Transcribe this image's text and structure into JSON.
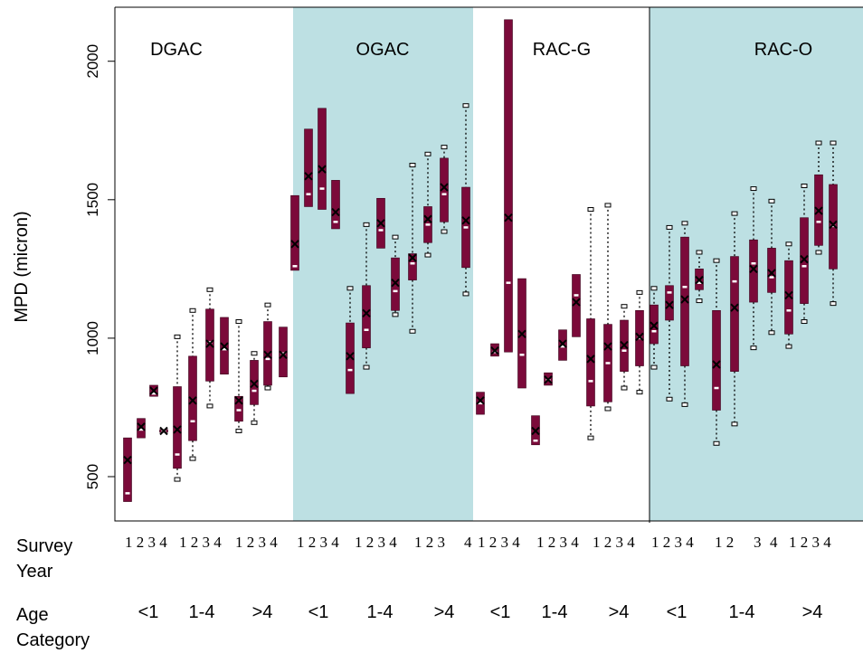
{
  "chart_data": {
    "type": "box",
    "ylabel": "MPD (micron)",
    "y_ticks": [
      500,
      1000,
      1500,
      2000
    ],
    "ylim": [
      340,
      2195
    ],
    "groups": [
      "DGAC",
      "OGAC",
      "RAC-G",
      "RAC-O"
    ],
    "shaded_groups": [
      "OGAC",
      "RAC-O"
    ],
    "colors": {
      "box": "#7b0a3a",
      "shade": "#bde0e3",
      "median": "#ffffff"
    },
    "survey_years": [
      "1",
      "2",
      "3",
      "4"
    ],
    "age_categories": [
      "<1",
      "1-4",
      ">4"
    ],
    "row_labels": {
      "survey": "Survey Year",
      "age": "Age Category"
    },
    "bottom_age_labels": [
      "<1",
      "1-4",
      ">4",
      "<1",
      "1-4",
      ">4",
      "<1",
      "1-4",
      ">4",
      "<1",
      "1-4",
      ">4"
    ],
    "bottom_year_labels": [
      "1 2 3 4",
      "1 2 3 4",
      "1 2 3 4",
      "1 2 3 4",
      "1 2 3 4",
      "1 2 3",
      "4",
      "1 2 3 4",
      "1 2 3 4",
      "1 2 3 4",
      "1 2 3 4",
      "1 2",
      "3",
      "4",
      "1 2 3 4"
    ],
    "boxes": [
      {
        "group": "DGAC",
        "age": "<1",
        "year": 1,
        "lo": 410,
        "q1": 410,
        "med": 440,
        "q3": 640,
        "hi": 640,
        "mean": 560
      },
      {
        "group": "DGAC",
        "age": "<1",
        "year": 2,
        "lo": 640,
        "q1": 640,
        "med": 670,
        "q3": 710,
        "hi": 710,
        "mean": 680
      },
      {
        "group": "DGAC",
        "age": "<1",
        "year": 3,
        "lo": 790,
        "q1": 790,
        "med": 800,
        "q3": 830,
        "hi": 830,
        "mean": 810
      },
      {
        "group": "DGAC",
        "age": "<1",
        "year": 4,
        "lo": 660,
        "q1": 660,
        "med": 665,
        "q3": 670,
        "hi": 670,
        "mean": 665
      },
      {
        "group": "DGAC",
        "age": "1-4",
        "year": 1,
        "lo": 490,
        "q1": 530,
        "med": 580,
        "q3": 825,
        "hi": 1005,
        "mean": 670
      },
      {
        "group": "DGAC",
        "age": "1-4",
        "year": 2,
        "lo": 565,
        "q1": 630,
        "med": 700,
        "q3": 935,
        "hi": 1100,
        "mean": 775
      },
      {
        "group": "DGAC",
        "age": "1-4",
        "year": 3,
        "lo": 755,
        "q1": 845,
        "med": 985,
        "q3": 1105,
        "hi": 1175,
        "mean": 980
      },
      {
        "group": "DGAC",
        "age": "1-4",
        "year": 4,
        "lo": 870,
        "q1": 870,
        "med": 960,
        "q3": 1075,
        "hi": 1075,
        "mean": 970
      },
      {
        "group": "DGAC",
        "age": ">4",
        "year": 1,
        "lo": 665,
        "q1": 700,
        "med": 740,
        "q3": 790,
        "hi": 1060,
        "mean": 775
      },
      {
        "group": "DGAC",
        "age": ">4",
        "year": 2,
        "lo": 695,
        "q1": 760,
        "med": 810,
        "q3": 920,
        "hi": 945,
        "mean": 835
      },
      {
        "group": "DGAC",
        "age": ">4",
        "year": 3,
        "lo": 820,
        "q1": 830,
        "med": 925,
        "q3": 1060,
        "hi": 1120,
        "mean": 940
      },
      {
        "group": "DGAC",
        "age": ">4",
        "year": 4,
        "lo": 860,
        "q1": 860,
        "med": 945,
        "q3": 1040,
        "hi": 1040,
        "mean": 940
      },
      {
        "group": "OGAC",
        "age": "<1",
        "year": 1,
        "lo": 1245,
        "q1": 1245,
        "med": 1260,
        "q3": 1515,
        "hi": 1515,
        "mean": 1340
      },
      {
        "group": "OGAC",
        "age": "<1",
        "year": 2,
        "lo": 1475,
        "q1": 1475,
        "med": 1520,
        "q3": 1755,
        "hi": 1755,
        "mean": 1585
      },
      {
        "group": "OGAC",
        "age": "<1",
        "year": 3,
        "lo": 1465,
        "q1": 1465,
        "med": 1540,
        "q3": 1830,
        "hi": 1830,
        "mean": 1610
      },
      {
        "group": "OGAC",
        "age": "<1",
        "year": 4,
        "lo": 1395,
        "q1": 1395,
        "med": 1420,
        "q3": 1570,
        "hi": 1570,
        "mean": 1455
      },
      {
        "group": "OGAC",
        "age": "1-4",
        "year": 1,
        "lo": 800,
        "q1": 800,
        "med": 885,
        "q3": 1055,
        "hi": 1180,
        "mean": 935
      },
      {
        "group": "OGAC",
        "age": "1-4",
        "year": 2,
        "lo": 895,
        "q1": 965,
        "med": 1030,
        "q3": 1190,
        "hi": 1410,
        "mean": 1090
      },
      {
        "group": "OGAC",
        "age": "1-4",
        "year": 3,
        "lo": 1325,
        "q1": 1325,
        "med": 1390,
        "q3": 1505,
        "hi": 1505,
        "mean": 1415
      },
      {
        "group": "OGAC",
        "age": "1-4",
        "year": 4,
        "lo": 1085,
        "q1": 1100,
        "med": 1170,
        "q3": 1290,
        "hi": 1365,
        "mean": 1200
      },
      {
        "group": "OGAC",
        "age": ">4",
        "year": 1,
        "lo": 1025,
        "q1": 1210,
        "med": 1270,
        "q3": 1305,
        "hi": 1625,
        "mean": 1290
      },
      {
        "group": "OGAC",
        "age": ">4",
        "year": 2,
        "lo": 1300,
        "q1": 1345,
        "med": 1410,
        "q3": 1475,
        "hi": 1665,
        "mean": 1430
      },
      {
        "group": "OGAC",
        "age": ">4",
        "year": 3,
        "lo": 1385,
        "q1": 1420,
        "med": 1520,
        "q3": 1650,
        "hi": 1690,
        "mean": 1545
      },
      {
        "group": "OGAC",
        "age": ">4",
        "year": 4,
        "lo": 1160,
        "q1": 1255,
        "med": 1400,
        "q3": 1545,
        "hi": 1840,
        "mean": 1425
      },
      {
        "group": "RAC-G",
        "age": "<1",
        "year": 1,
        "lo": 725,
        "q1": 725,
        "med": 765,
        "q3": 805,
        "hi": 805,
        "mean": 775
      },
      {
        "group": "RAC-G",
        "age": "<1",
        "year": 2,
        "lo": 935,
        "q1": 935,
        "med": 950,
        "q3": 980,
        "hi": 980,
        "mean": 955
      },
      {
        "group": "RAC-G",
        "age": "<1",
        "year": 3,
        "lo": 950,
        "q1": 950,
        "med": 1200,
        "q3": 2150,
        "hi": 2150,
        "mean": 1435
      },
      {
        "group": "RAC-G",
        "age": "<1",
        "year": 4,
        "lo": 820,
        "q1": 820,
        "med": 940,
        "q3": 1215,
        "hi": 1215,
        "mean": 1015
      },
      {
        "group": "RAC-G",
        "age": "1-4",
        "year": 1,
        "lo": 615,
        "q1": 615,
        "med": 630,
        "q3": 720,
        "hi": 720,
        "mean": 665
      },
      {
        "group": "RAC-G",
        "age": "1-4",
        "year": 2,
        "lo": 830,
        "q1": 830,
        "med": 850,
        "q3": 875,
        "hi": 875,
        "mean": 850
      },
      {
        "group": "RAC-G",
        "age": "1-4",
        "year": 3,
        "lo": 920,
        "q1": 920,
        "med": 970,
        "q3": 1030,
        "hi": 1030,
        "mean": 980
      },
      {
        "group": "RAC-G",
        "age": "1-4",
        "year": 4,
        "lo": 1005,
        "q1": 1005,
        "med": 1155,
        "q3": 1230,
        "hi": 1230,
        "mean": 1130
      },
      {
        "group": "RAC-G",
        "age": ">4",
        "year": 1,
        "lo": 640,
        "q1": 755,
        "med": 845,
        "q3": 1070,
        "hi": 1465,
        "mean": 925
      },
      {
        "group": "RAC-G",
        "age": ">4",
        "year": 2,
        "lo": 745,
        "q1": 770,
        "med": 910,
        "q3": 1050,
        "hi": 1480,
        "mean": 970
      },
      {
        "group": "RAC-G",
        "age": ">4",
        "year": 3,
        "lo": 820,
        "q1": 880,
        "med": 955,
        "q3": 1065,
        "hi": 1115,
        "mean": 975
      },
      {
        "group": "RAC-G",
        "age": ">4",
        "year": 4,
        "lo": 805,
        "q1": 900,
        "med": 1000,
        "q3": 1100,
        "hi": 1165,
        "mean": 1005
      },
      {
        "group": "RAC-O",
        "age": "<1",
        "year": 1,
        "lo": 895,
        "q1": 980,
        "med": 1025,
        "q3": 1120,
        "hi": 1180,
        "mean": 1045
      },
      {
        "group": "RAC-O",
        "age": "<1",
        "year": 2,
        "lo": 780,
        "q1": 1065,
        "med": 1165,
        "q3": 1190,
        "hi": 1400,
        "mean": 1120
      },
      {
        "group": "RAC-O",
        "age": "<1",
        "year": 3,
        "lo": 760,
        "q1": 900,
        "med": 1185,
        "q3": 1365,
        "hi": 1415,
        "mean": 1140
      },
      {
        "group": "RAC-O",
        "age": "<1",
        "year": 4,
        "lo": 1135,
        "q1": 1175,
        "med": 1200,
        "q3": 1250,
        "hi": 1310,
        "mean": 1210
      },
      {
        "group": "RAC-O",
        "age": "1-4",
        "year": 1,
        "lo": 620,
        "q1": 740,
        "med": 820,
        "q3": 1100,
        "hi": 1280,
        "mean": 905
      },
      {
        "group": "RAC-O",
        "age": "1-4",
        "year": 2,
        "lo": 690,
        "q1": 880,
        "med": 1205,
        "q3": 1295,
        "hi": 1450,
        "mean": 1110
      },
      {
        "group": "RAC-O",
        "age": "1-4",
        "year": 3,
        "lo": 965,
        "q1": 1130,
        "med": 1270,
        "q3": 1355,
        "hi": 1540,
        "mean": 1250
      },
      {
        "group": "RAC-O",
        "age": "1-4",
        "year": 4,
        "lo": 1020,
        "q1": 1165,
        "med": 1220,
        "q3": 1325,
        "hi": 1495,
        "mean": 1235
      },
      {
        "group": "RAC-O",
        "age": ">4",
        "year": 1,
        "lo": 970,
        "q1": 1015,
        "med": 1100,
        "q3": 1280,
        "hi": 1340,
        "mean": 1155
      },
      {
        "group": "RAC-O",
        "age": ">4",
        "year": 2,
        "lo": 1060,
        "q1": 1125,
        "med": 1260,
        "q3": 1435,
        "hi": 1550,
        "mean": 1285
      },
      {
        "group": "RAC-O",
        "age": ">4",
        "year": 3,
        "lo": 1310,
        "q1": 1335,
        "med": 1420,
        "q3": 1590,
        "hi": 1705,
        "mean": 1460
      },
      {
        "group": "RAC-O",
        "age": ">4",
        "year": 4,
        "lo": 1125,
        "q1": 1250,
        "med": 1405,
        "q3": 1555,
        "hi": 1705,
        "mean": 1410
      }
    ]
  }
}
